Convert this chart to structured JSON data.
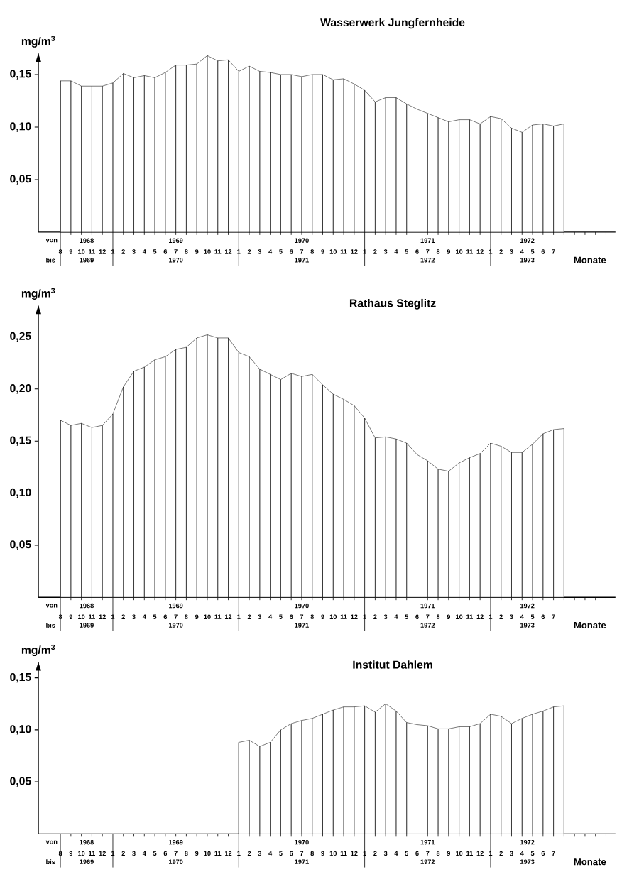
{
  "chart_data": [
    {
      "type": "area",
      "title": "Wasserwerk Jungfernheide",
      "ylabel": "mg/m$^{3}$",
      "xlabel": "Monate",
      "color": "#000000",
      "categories": [
        "8",
        "9",
        "10",
        "11",
        "12",
        "1",
        "2",
        "3",
        "4",
        "5",
        "6",
        "7",
        "8",
        "9",
        "10",
        "11",
        "12",
        "1",
        "2",
        "3",
        "4",
        "5",
        "6",
        "7",
        "8",
        "9",
        "10",
        "11",
        "12",
        "1",
        "2",
        "3",
        "4",
        "5",
        "6",
        "7",
        "8",
        "9",
        "10",
        "11",
        "12",
        "1",
        "2",
        "3",
        "4",
        "5",
        "6",
        "7",
        null
      ],
      "values": [
        0.144,
        0.144,
        0.139,
        0.139,
        0.139,
        0.142,
        0.151,
        0.147,
        0.149,
        0.147,
        0.152,
        0.159,
        0.159,
        0.16,
        0.168,
        0.163,
        0.164,
        0.153,
        0.158,
        0.153,
        0.152,
        0.15,
        0.15,
        0.148,
        0.15,
        0.15,
        0.145,
        0.146,
        0.141,
        0.135,
        0.124,
        0.128,
        0.128,
        0.122,
        0.117,
        0.113,
        0.109,
        0.105,
        0.107,
        0.107,
        0.103,
        0.11,
        0.108,
        0.099,
        0.095,
        0.102,
        0.103,
        0.101,
        0.103
      ],
      "ylim": [
        0,
        0.17
      ],
      "yticks": [
        {
          "value": 0.05,
          "label": "0,05"
        },
        {
          "value": 0.1,
          "label": "0,10"
        },
        {
          "value": 0.15,
          "label": "0,15"
        }
      ],
      "annotations": [
        "von",
        "1968",
        "1969",
        "1970",
        "1971",
        "1972",
        "bis",
        "1969",
        "1970",
        "1971",
        "1972",
        "1973"
      ]
    },
    {
      "type": "area",
      "title": "Rathaus Steglitz",
      "ylabel": "mg/m$^{3}$",
      "xlabel": "Monate",
      "color": "#000000",
      "categories": [
        "8",
        "9",
        "10",
        "11",
        "12",
        "1",
        "2",
        "3",
        "4",
        "5",
        "6",
        "7",
        "8",
        "9",
        "10",
        "11",
        "12",
        "1",
        "2",
        "3",
        "4",
        "5",
        "6",
        "7",
        "8",
        "9",
        "10",
        "11",
        "12",
        "1",
        "2",
        "3",
        "4",
        "5",
        "6",
        "7",
        "8",
        "9",
        "10",
        "11",
        "12",
        "1",
        "2",
        "3",
        "4",
        "5",
        "6",
        "7",
        null
      ],
      "values": [
        0.17,
        0.165,
        0.167,
        0.163,
        0.165,
        0.176,
        0.202,
        0.217,
        0.221,
        0.228,
        0.231,
        0.238,
        0.24,
        0.249,
        0.252,
        0.249,
        0.249,
        0.235,
        0.231,
        0.219,
        0.214,
        0.209,
        0.215,
        0.212,
        0.214,
        0.204,
        0.195,
        0.19,
        0.184,
        0.172,
        0.153,
        0.154,
        0.152,
        0.148,
        0.137,
        0.131,
        0.123,
        0.121,
        0.129,
        0.134,
        0.138,
        0.148,
        0.145,
        0.139,
        0.139,
        0.147,
        0.157,
        0.161,
        0.162
      ],
      "ylim": [
        0,
        0.28
      ],
      "yticks": [
        {
          "value": 0.05,
          "label": "0,05"
        },
        {
          "value": 0.1,
          "label": "0,10"
        },
        {
          "value": 0.15,
          "label": "0,15"
        },
        {
          "value": 0.2,
          "label": "0,20"
        },
        {
          "value": 0.25,
          "label": "0,25"
        }
      ],
      "annotations": [
        "von",
        "1968",
        "1969",
        "1970",
        "1971",
        "1972",
        "bis",
        "1969",
        "1970",
        "1971",
        "1972",
        "1973"
      ]
    },
    {
      "type": "area",
      "title": "Institut Dahlem",
      "ylabel": "mg/m$^{3}$",
      "xlabel": "Monate",
      "color": "#000000",
      "categories": [
        "8",
        "9",
        "10",
        "11",
        "12",
        "1",
        "2",
        "3",
        "4",
        "5",
        "6",
        "7",
        "8",
        "9",
        "10",
        "11",
        "12",
        "1",
        "2",
        "3",
        "4",
        "5",
        "6",
        "7",
        "8",
        "9",
        "10",
        "11",
        "12",
        "1",
        "2",
        "3",
        "4",
        "5",
        "6",
        "7",
        "8",
        "9",
        "10",
        "11",
        "12",
        "1",
        "2",
        "3",
        "4",
        "5",
        "6",
        "7",
        null
      ],
      "values": [
        null,
        null,
        null,
        null,
        null,
        null,
        null,
        null,
        null,
        null,
        null,
        null,
        null,
        null,
        null,
        null,
        null,
        0.088,
        0.09,
        0.084,
        0.088,
        0.1,
        0.106,
        0.109,
        0.111,
        0.115,
        0.119,
        0.122,
        0.122,
        0.123,
        0.117,
        0.125,
        0.118,
        0.107,
        0.105,
        0.104,
        0.101,
        0.101,
        0.103,
        0.103,
        0.106,
        0.115,
        0.113,
        0.106,
        0.111,
        0.115,
        0.118,
        0.122,
        0.123
      ],
      "ylim": [
        0,
        0.165
      ],
      "yticks": [
        {
          "value": 0.05,
          "label": "0,05"
        },
        {
          "value": 0.1,
          "label": "0,10"
        },
        {
          "value": 0.15,
          "label": "0,15"
        }
      ],
      "annotations": [
        "von",
        "1968",
        "1969",
        "1970",
        "1971",
        "1972",
        "bis",
        "1969",
        "1970",
        "1971",
        "1972",
        "1973"
      ]
    }
  ]
}
